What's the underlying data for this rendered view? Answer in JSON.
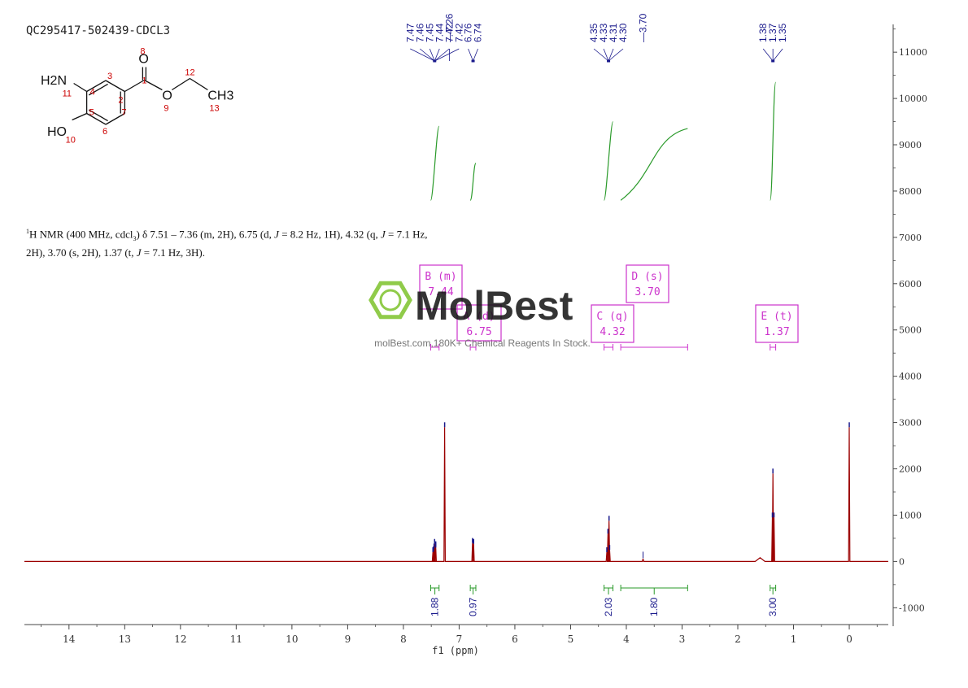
{
  "sample_title": "QC295417-502439-CDCL3",
  "nmr_description": {
    "nucleus_sup": "1",
    "text_a": "H NMR (400 MHz, cdcl",
    "sub": "3",
    "text_b": ") δ 7.51 – 7.36 (m, 2H), 6.75 (d, ",
    "j1": "J",
    "text_c": " = 8.2 Hz, 1H), 4.32 (q, ",
    "j2": "J",
    "text_d": " = 7.1 Hz,",
    "text_e": "2H), 3.70 (s, 2H), 1.37 (t, ",
    "j3": "J",
    "text_f": " = 7.1 Hz, 3H)."
  },
  "structure": {
    "atoms": {
      "o8": "O",
      "nh2": "H2N",
      "o9": "O",
      "ch3": "CH3",
      "ho": "HO"
    },
    "numbers": [
      "8",
      "1",
      "3",
      "2",
      "12",
      "11",
      "4",
      "9",
      "13",
      "5",
      "7",
      "6",
      "10"
    ]
  },
  "watermark": {
    "brand": "MolBest",
    "tagline": "molBest.com,180K+ Chemical Reagents In Stock."
  },
  "colors": {
    "spectrum": "#9b0000",
    "peak_label": "#1a1a8c",
    "integral": "#2a9a2a",
    "box": "#cc33cc",
    "watermark": "#7cc22a",
    "axis": "#444444"
  },
  "chart_data": {
    "type": "line",
    "xlabel": "f1 (ppm)",
    "x_range": [
      14.8,
      -0.7
    ],
    "x_ticks": [
      14,
      13,
      12,
      11,
      10,
      9,
      8,
      7,
      6,
      5,
      4,
      3,
      2,
      1,
      0
    ],
    "y_range": [
      -1100,
      11600
    ],
    "y_ticks": [
      -1000,
      0,
      1000,
      2000,
      3000,
      4000,
      5000,
      6000,
      7000,
      8000,
      9000,
      10000,
      11000
    ],
    "peaks": [
      {
        "ppm": 7.47,
        "height": 200
      },
      {
        "ppm": 7.46,
        "height": 220
      },
      {
        "ppm": 7.45,
        "height": 280
      },
      {
        "ppm": 7.44,
        "height": 380
      },
      {
        "ppm": 7.42,
        "height": 330
      },
      {
        "ppm": 7.42,
        "height": 300
      },
      {
        "ppm": 7.26,
        "height": 2900
      },
      {
        "ppm": 6.76,
        "height": 400
      },
      {
        "ppm": 6.74,
        "height": 380
      },
      {
        "ppm": 4.35,
        "height": 200
      },
      {
        "ppm": 4.33,
        "height": 600
      },
      {
        "ppm": 4.31,
        "height": 880
      },
      {
        "ppm": 4.3,
        "height": 250
      },
      {
        "ppm": 3.7,
        "height": 60
      },
      {
        "ppm": 1.6,
        "height": 80
      },
      {
        "ppm": 1.38,
        "height": 950
      },
      {
        "ppm": 1.37,
        "height": 1900
      },
      {
        "ppm": 1.35,
        "height": 950
      },
      {
        "ppm": 0.0,
        "height": 2900
      }
    ],
    "peak_labels": {
      "group1": [
        "7.47",
        "7.46",
        "7.45",
        "7.44",
        "7.42",
        "7.42"
      ],
      "solvent": "7.26",
      "group2": [
        "6.76",
        "6.74"
      ],
      "group3": [
        "4.35",
        "4.33",
        "4.31",
        "4.30"
      ],
      "single": "3.70",
      "group4": [
        "1.38",
        "1.37",
        "1.35"
      ]
    },
    "integrals": [
      {
        "from": 7.51,
        "to": 7.36,
        "value": "1.88",
        "curve_y": [
          7800,
          9400
        ]
      },
      {
        "from": 6.8,
        "to": 6.7,
        "value": "0.97",
        "curve_y": [
          7800,
          8600
        ]
      },
      {
        "from": 4.4,
        "to": 4.24,
        "value": "2.03",
        "curve_y": [
          7800,
          9500
        ]
      },
      {
        "from": 4.1,
        "to": 2.9,
        "value": "1.80",
        "curve_y": [
          7800,
          9350
        ]
      },
      {
        "from": 1.42,
        "to": 1.32,
        "value": "3.00",
        "curve_y": [
          7800,
          10350
        ]
      }
    ],
    "multiplets": [
      {
        "letter": "B",
        "mult": "m",
        "shift": "7.44",
        "range": [
          7.51,
          7.36
        ]
      },
      {
        "letter": "A",
        "mult": "d",
        "shift": "6.75",
        "range": [
          6.8,
          6.7
        ]
      },
      {
        "letter": "C",
        "mult": "q",
        "shift": "4.32",
        "range": [
          4.4,
          4.24
        ]
      },
      {
        "letter": "D",
        "mult": "s",
        "shift": "3.70",
        "range": [
          4.1,
          2.9
        ]
      },
      {
        "letter": "E",
        "mult": "t",
        "shift": "1.37",
        "range": [
          1.42,
          1.32
        ]
      }
    ]
  }
}
